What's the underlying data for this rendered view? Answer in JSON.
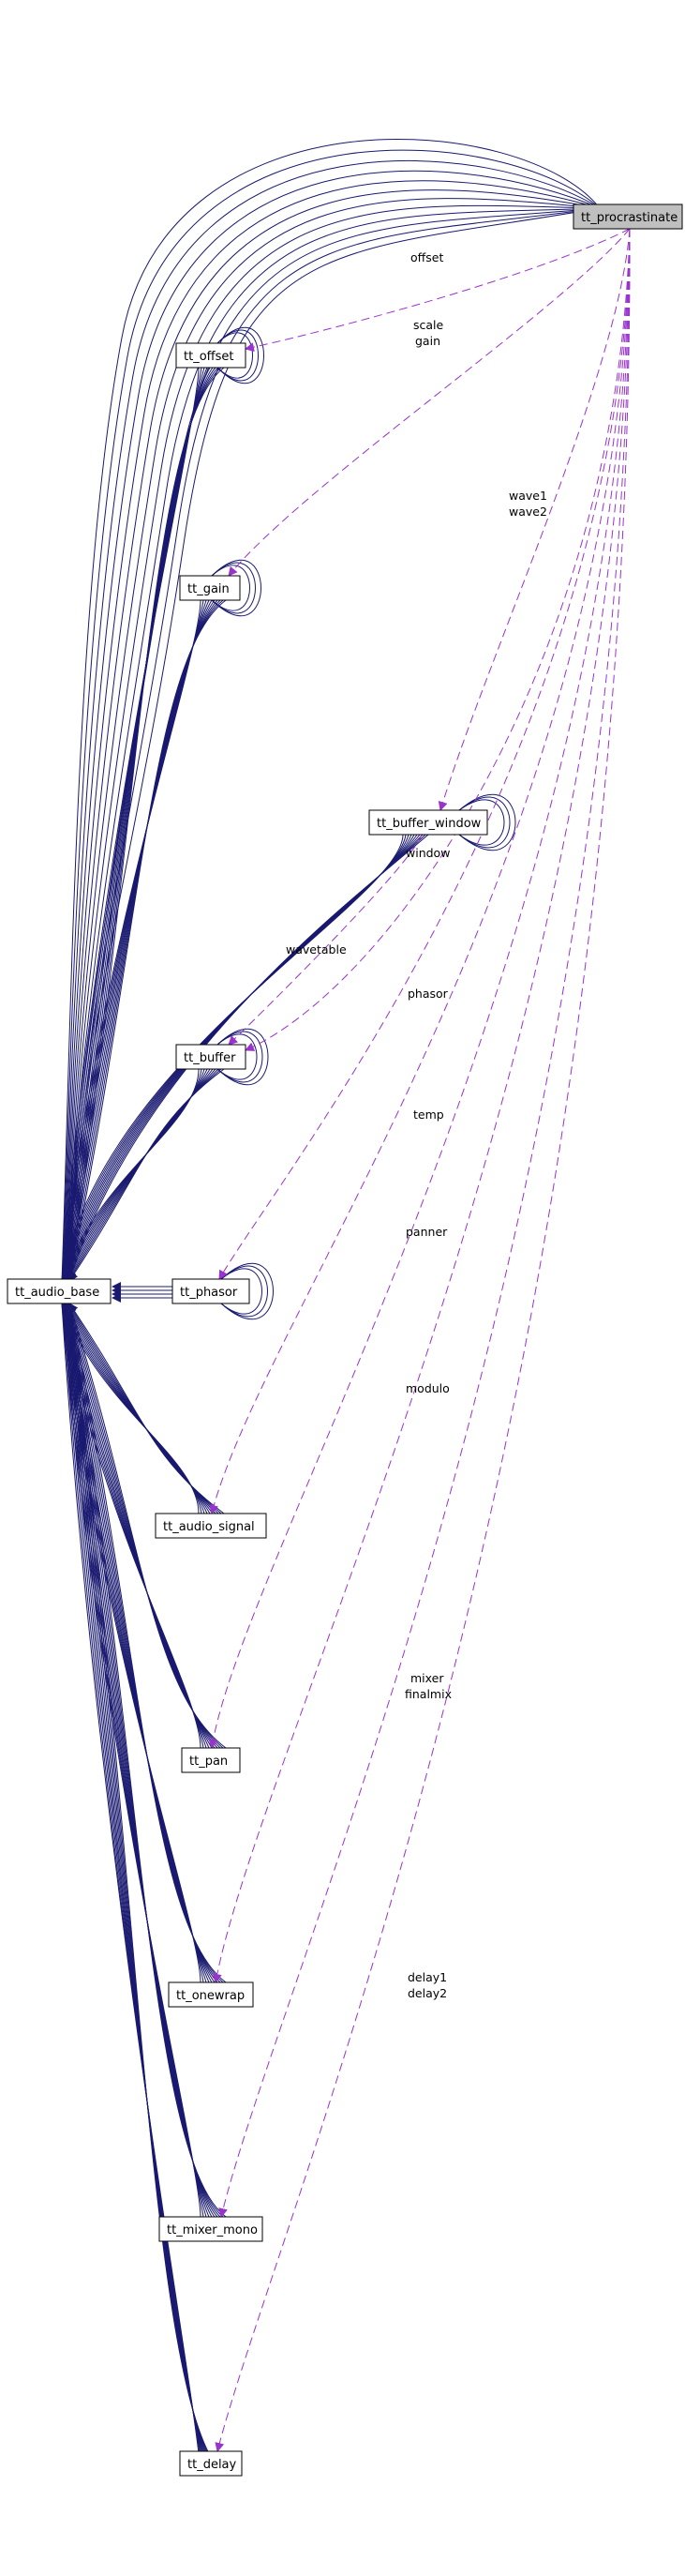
{
  "colors": {
    "inheritance_edge": "#191970",
    "collaboration_edge": "#9a32cd",
    "highlight_node_fill": "#bfbfbf"
  },
  "nodes": {
    "tt_procrastinate": "tt_procrastinate",
    "tt_offset": "tt_offset",
    "tt_gain": "tt_gain",
    "tt_buffer_window": "tt_buffer_window",
    "tt_buffer": "tt_buffer",
    "tt_audio_base": "tt_audio_base",
    "tt_phasor": "tt_phasor",
    "tt_audio_signal": "tt_audio_signal",
    "tt_pan": "tt_pan",
    "tt_onewrap": "tt_onewrap",
    "tt_mixer_mono": "tt_mixer_mono",
    "tt_delay": "tt_delay"
  },
  "edge_labels": {
    "offset": "offset",
    "scale": "scale",
    "gain": "gain",
    "wave1": "wave1",
    "wave2": "wave2",
    "window": "window",
    "wavetable": "wavetable",
    "phasor": "phasor",
    "temp": "temp",
    "panner": "panner",
    "modulo": "modulo",
    "mixer": "mixer",
    "finalmix": "finalmix",
    "delay1": "delay1",
    "delay2": "delay2"
  }
}
